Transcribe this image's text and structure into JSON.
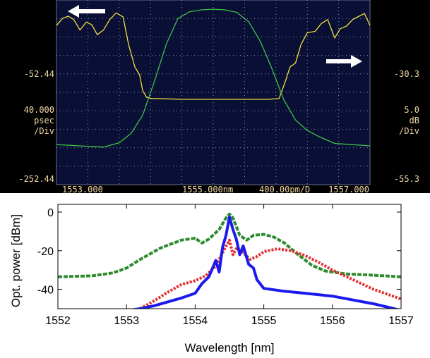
{
  "chart_data": [
    {
      "type": "line",
      "panel": "instrument screen (top)",
      "background": "#000000",
      "plot_background": "#0a0f35",
      "x_range_nm": [
        1553.0,
        1557.0
      ],
      "grid": "dotted",
      "texts": {
        "x_start": "1553.000",
        "x_center": "1555.000nm",
        "x_span": "400.00pm/D",
        "x_end": "1557.000",
        "left_ref": "-52.44",
        "left_scale_value": "40.000",
        "left_scale_unit": "psec",
        "left_scale_div": "/Div",
        "left_bottom": "-252.44",
        "right_ref": "-30.3",
        "right_scale_value": "5.0",
        "right_scale_unit": "dB",
        "right_scale_div": "/Div",
        "right_bottom": "-55.3"
      },
      "left_axis": {
        "top": 27.56,
        "per_div": 40.0,
        "divisions": 7
      },
      "right_axis": {
        "top": -25.3,
        "per_div": 5.0,
        "divisions": 6
      },
      "arrows": [
        "left-arrow (top-left)",
        "right-arrow (right side)"
      ],
      "series": [
        {
          "color": "#f0e040",
          "axis": "left",
          "x": [
            1553.0,
            1553.08,
            1553.15,
            1553.22,
            1553.3,
            1553.38,
            1553.45,
            1553.52,
            1553.6,
            1553.68,
            1553.76,
            1553.85,
            1553.92,
            1554.0,
            1554.06,
            1554.1,
            1554.15,
            1554.22,
            1554.3,
            1554.6,
            1555.0,
            1555.4,
            1555.7,
            1555.84,
            1555.92,
            1555.98,
            1556.05,
            1556.12,
            1556.2,
            1556.3,
            1556.38,
            1556.46,
            1556.55,
            1556.62,
            1556.7,
            1556.78,
            1556.86,
            1556.93,
            1557.0
          ],
          "y": [
            -11,
            0,
            3,
            -2,
            -18,
            -6,
            -10,
            -25,
            -18,
            -2,
            8,
            2,
            -40,
            -74,
            -86,
            -110,
            -120,
            -122,
            -122,
            -123,
            -123,
            -123,
            -123,
            -122,
            -96,
            -74,
            -68,
            -40,
            -22,
            -20,
            -8,
            -2,
            -30,
            -16,
            -12,
            -2,
            3,
            7,
            -11
          ]
        },
        {
          "color": "#3ec248",
          "axis": "right",
          "x": [
            1553.0,
            1553.3,
            1553.6,
            1553.8,
            1553.95,
            1554.1,
            1554.25,
            1554.4,
            1554.55,
            1554.7,
            1554.85,
            1555.0,
            1555.15,
            1555.3,
            1555.45,
            1555.6,
            1555.75,
            1555.9,
            1556.05,
            1556.2,
            1556.35,
            1556.55,
            1557.0
          ],
          "y": [
            -48.8,
            -49.0,
            -49.2,
            -48.5,
            -47.0,
            -44.0,
            -38.5,
            -32.5,
            -28.3,
            -27.2,
            -26.9,
            -26.8,
            -26.9,
            -27.3,
            -28.8,
            -32.0,
            -36.5,
            -41.5,
            -44.8,
            -46.5,
            -47.5,
            -48.6,
            -49.0
          ]
        }
      ]
    },
    {
      "type": "line",
      "panel": "measured spectra (bottom)",
      "xlabel": "Wavelength [nm]",
      "ylabel": "Opt. power [dBm]",
      "xlim": [
        1552,
        1557
      ],
      "ylim": [
        -50,
        4
      ],
      "xticks": [
        1552,
        1553,
        1554,
        1555,
        1556,
        1557
      ],
      "yticks": [
        0,
        -20,
        -40
      ],
      "grid": false,
      "series": [
        {
          "color": "#2e8b2e",
          "style": "dashed",
          "x": [
            1552.0,
            1552.5,
            1552.8,
            1553.0,
            1553.2,
            1553.5,
            1553.8,
            1554.0,
            1554.1,
            1554.2,
            1554.35,
            1554.45,
            1554.5,
            1554.55,
            1554.65,
            1554.75,
            1554.85,
            1555.0,
            1555.15,
            1555.3,
            1555.5,
            1555.7,
            1555.9,
            1556.2,
            1556.5,
            1557.0
          ],
          "y": [
            -33.5,
            -33.0,
            -31.5,
            -29.0,
            -24.5,
            -18.5,
            -14.5,
            -13.5,
            -16.0,
            -14.0,
            -9.0,
            -3.0,
            -1.0,
            -3.0,
            -12.0,
            -14.5,
            -12.0,
            -11.5,
            -13.0,
            -16.0,
            -22.0,
            -27.5,
            -30.5,
            -32.0,
            -32.5,
            -33.5
          ]
        },
        {
          "color": "#e23030",
          "style": "dotted",
          "x": [
            1553.2,
            1553.4,
            1553.6,
            1553.8,
            1554.0,
            1554.15,
            1554.3,
            1554.4,
            1554.5,
            1554.55,
            1554.6,
            1554.7,
            1554.8,
            1554.9,
            1555.0,
            1555.2,
            1555.4,
            1555.6,
            1555.8,
            1556.0,
            1556.3,
            1556.6,
            1557.0
          ],
          "y": [
            -50.0,
            -46.0,
            -41.5,
            -37.5,
            -35.5,
            -33.0,
            -28.0,
            -21.0,
            -14.5,
            -22.0,
            -19.0,
            -21.0,
            -24.5,
            -23.0,
            -20.5,
            -19.0,
            -20.0,
            -22.5,
            -26.0,
            -30.0,
            -35.0,
            -40.0,
            -45.0
          ]
        },
        {
          "color": "#1a1aee",
          "style": "solid",
          "x": [
            1553.0,
            1553.2,
            1553.4,
            1553.6,
            1553.8,
            1554.0,
            1554.1,
            1554.2,
            1554.3,
            1554.35,
            1554.4,
            1554.45,
            1554.5,
            1554.55,
            1554.6,
            1554.65,
            1554.7,
            1554.78,
            1554.85,
            1554.9,
            1555.0,
            1555.3,
            1555.6,
            1556.0,
            1556.3,
            1556.6,
            1556.9,
            1557.0
          ],
          "y": [
            -51.0,
            -50.0,
            -48.5,
            -46.5,
            -44.5,
            -42.0,
            -37.0,
            -33.5,
            -25.0,
            -31.0,
            -18.0,
            -12.0,
            -2.5,
            -9.0,
            -14.0,
            -22.0,
            -17.5,
            -27.0,
            -29.0,
            -35.0,
            -39.5,
            -41.0,
            -42.0,
            -43.5,
            -45.5,
            -47.5,
            -50.0,
            -51.0
          ]
        }
      ]
    }
  ]
}
